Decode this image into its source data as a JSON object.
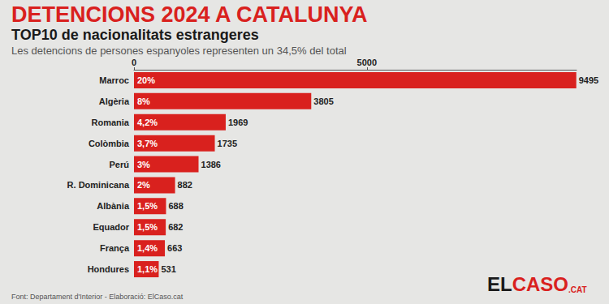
{
  "chart_data": {
    "type": "bar",
    "title": "DETENCIONS 2024 A CATALUNYA",
    "subtitle": "TOP10 de nacionalitats estrangeres",
    "note": "Les detencions de persones espanyoles representen un 34,5% del total",
    "source": "Font: Departament d'Interior - Elaboració: ElCaso.cat",
    "logo": [
      "EL",
      "CASO",
      ".CAT"
    ],
    "orientation": "horizontal",
    "categories": [
      "Marroc",
      "Algèria",
      "Romania",
      "Colòmbia",
      "Perú",
      "R. Dominicana",
      "Albània",
      "Equador",
      "França",
      "Hondures"
    ],
    "values": [
      9495,
      3805,
      1969,
      1735,
      1386,
      882,
      688,
      682,
      663,
      531
    ],
    "share_labels": [
      "20%",
      "8%",
      "4,2%",
      "3,7%",
      "3%",
      "2%",
      "1,5%",
      "1,5%",
      "1,4%",
      "1,1%"
    ],
    "color": "#d9211e",
    "xlim": [
      0,
      9500
    ],
    "xticks": [
      0,
      5000
    ],
    "grid": false,
    "data_labels": true
  }
}
